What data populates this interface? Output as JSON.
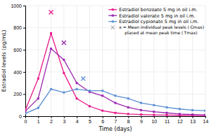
{
  "chart_data": {
    "type": "line",
    "xlabel": "Time (days)",
    "ylabel": "Estradiol levels (pg/mL)",
    "x": [
      0,
      1,
      2,
      3,
      4,
      5,
      6,
      7,
      8,
      9,
      10,
      11,
      12,
      13,
      14
    ],
    "xlim": [
      0,
      14
    ],
    "ylim": [
      0,
      1000
    ],
    "xticks": [
      0,
      1,
      2,
      3,
      4,
      5,
      6,
      7,
      8,
      9,
      10,
      11,
      12,
      13,
      14
    ],
    "yticks": [
      0,
      200,
      400,
      600,
      800,
      1000
    ],
    "grid": true,
    "legend": "upper right",
    "series": [
      {
        "name": "Estradiol benzoate 5 mg in oil i.m.",
        "color": "#e8198a",
        "marker": "square",
        "values": [
          55,
          340,
          750,
          390,
          160,
          90,
          50,
          30,
          20,
          15,
          12,
          10,
          8,
          7,
          6
        ],
        "peak_x": 2,
        "peak_y": 940
      },
      {
        "name": "Estradiol valerate 5 mg in oil i.m.",
        "color": "#9b26af",
        "marker": "square",
        "values": [
          45,
          160,
          610,
          510,
          300,
          220,
          185,
          120,
          80,
          55,
          40,
          30,
          20,
          15,
          12
        ],
        "peak_x": 3,
        "peak_y": 665
      },
      {
        "name": "Estradiol cypionate 5 mg in oil i.m.",
        "color": "#5b8fd4",
        "marker": "square",
        "values": [
          25,
          75,
          245,
          215,
          245,
          230,
          230,
          185,
          160,
          120,
          100,
          80,
          65,
          55,
          50
        ],
        "peak_x": 4.5,
        "peak_y": 340
      }
    ],
    "annotation": [
      "x = Mean individual peak levels ( Cmax)",
      "placed at mean peak time ( Tmax)"
    ]
  }
}
